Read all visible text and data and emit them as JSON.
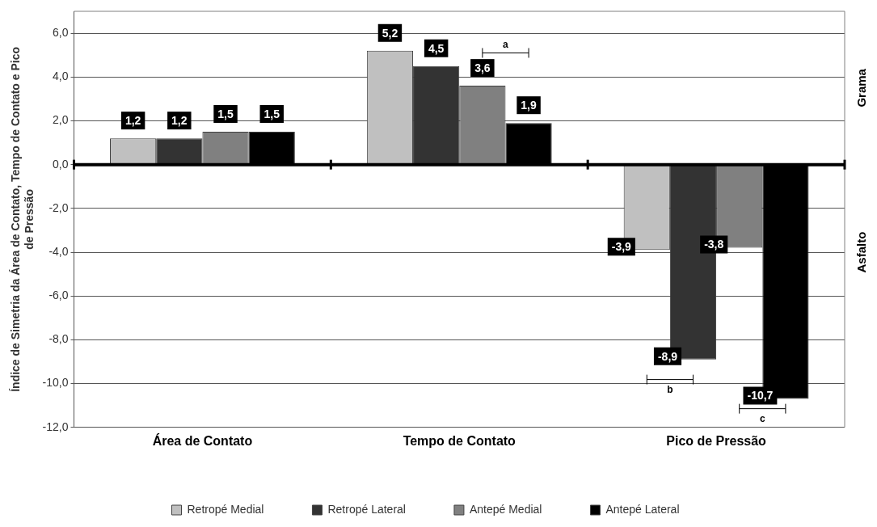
{
  "chart_data": {
    "type": "bar",
    "ylabel": "Índice de Simetria da Área de Contato, Tempo de Contato e Pico de Pressão",
    "categories": [
      "Área de Contato",
      "Tempo de Contato",
      "Pico de Pressão"
    ],
    "series": [
      {
        "name": "Retropé Medial",
        "color": "#c0c0c0",
        "values": [
          1.2,
          5.2,
          -3.9
        ],
        "value_labels": [
          "1,2",
          "5,2",
          "-3,9"
        ]
      },
      {
        "name": "Retropé Lateral",
        "color": "#333333",
        "values": [
          1.2,
          4.5,
          -8.9
        ],
        "value_labels": [
          "1,2",
          "4,5",
          "-8,9"
        ]
      },
      {
        "name": "Antepé Medial",
        "color": "#808080",
        "values": [
          1.5,
          3.6,
          -3.8
        ],
        "value_labels": [
          "1,5",
          "3,6",
          "-3,8"
        ]
      },
      {
        "name": "Antepé Lateral",
        "color": "#000000",
        "values": [
          1.5,
          1.9,
          -10.7
        ],
        "value_labels": [
          "1,5",
          "1,9",
          "-10,7"
        ]
      }
    ],
    "ylim": [
      -12,
      7
    ],
    "yticks": [
      {
        "value": -12,
        "label": "-12,0"
      },
      {
        "value": -10,
        "label": "-10,0"
      },
      {
        "value": -8,
        "label": "-8,0"
      },
      {
        "value": -6,
        "label": "-6,0"
      },
      {
        "value": -4,
        "label": "-4,0"
      },
      {
        "value": -2,
        "label": "-2,0"
      },
      {
        "value": 0,
        "label": "0,0"
      },
      {
        "value": 2,
        "label": "2,0"
      },
      {
        "value": 4,
        "label": "4,0"
      },
      {
        "value": 6,
        "label": "6,0"
      }
    ],
    "grid": "y",
    "legend": "bottom",
    "annotations": [
      "a",
      "b",
      "c",
      "Grama",
      "Asfalto"
    ]
  }
}
